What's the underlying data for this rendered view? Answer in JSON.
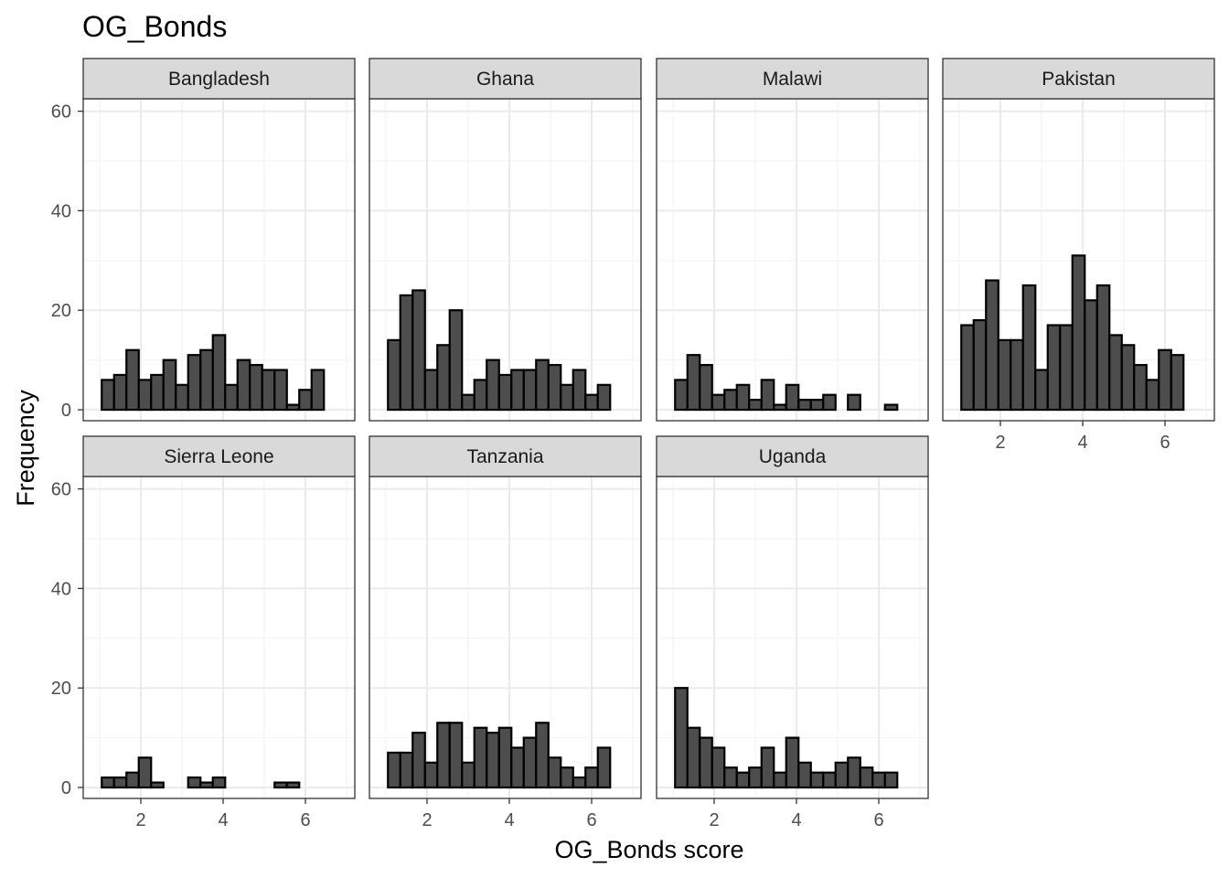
{
  "chart_data": {
    "type": "bar",
    "title": "OG_Bonds",
    "xlabel": "OG_Bonds score",
    "ylabel": "Frequency",
    "xlim": [
      0.6,
      7.2
    ],
    "ylim": [
      -2.2,
      62.5
    ],
    "x_ticks": [
      2,
      4,
      6
    ],
    "y_ticks": [
      0,
      20,
      40,
      60
    ],
    "grid": true,
    "bin_centers": [
      1.2,
      1.5,
      1.8,
      2.1,
      2.4,
      2.7,
      3.0,
      3.3,
      3.6,
      3.9,
      4.2,
      4.5,
      4.8,
      5.1,
      5.4,
      5.7,
      6.0,
      6.3,
      6.6
    ],
    "bin_width": 0.3,
    "bar_fill": "#4d4d4d",
    "bar_stroke": "#000000",
    "strip_fill": "#d9d9d9",
    "panels": [
      {
        "name": "Bangladesh",
        "values": [
          6,
          7,
          12,
          6,
          7,
          10,
          5,
          11,
          12,
          15,
          5,
          10,
          9,
          8,
          8,
          1,
          4,
          8,
          0
        ]
      },
      {
        "name": "Ghana",
        "values": [
          14,
          23,
          24,
          8,
          13,
          20,
          3,
          6,
          10,
          7,
          8,
          8,
          10,
          9,
          5,
          8,
          3,
          5,
          0
        ]
      },
      {
        "name": "Malawi",
        "values": [
          6,
          11,
          9,
          3,
          4,
          5,
          2,
          6,
          1,
          5,
          2,
          2,
          3,
          0,
          3,
          0,
          0,
          1,
          0
        ]
      },
      {
        "name": "Pakistan",
        "values": [
          17,
          18,
          26,
          14,
          14,
          25,
          8,
          17,
          17,
          31,
          22,
          25,
          15,
          13,
          9,
          6,
          12,
          11,
          0
        ]
      },
      {
        "name": "Sierra Leone",
        "values": [
          2,
          2,
          3,
          6,
          1,
          0,
          0,
          2,
          1,
          2,
          0,
          0,
          0,
          0,
          1,
          1,
          0,
          0,
          0
        ]
      },
      {
        "name": "Tanzania",
        "values": [
          7,
          7,
          11,
          5,
          13,
          13,
          5,
          12,
          11,
          12,
          8,
          10,
          13,
          6,
          4,
          2,
          4,
          8,
          0
        ]
      },
      {
        "name": "Uganda",
        "values": [
          20,
          12,
          10,
          8,
          4,
          3,
          4,
          8,
          3,
          10,
          5,
          3,
          3,
          5,
          6,
          4,
          3,
          3,
          0
        ]
      }
    ]
  }
}
